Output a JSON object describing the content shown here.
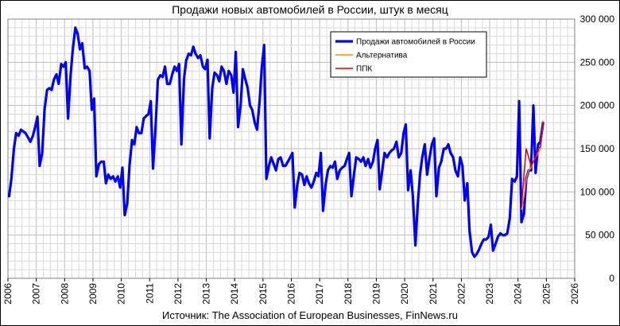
{
  "chart_data": {
    "type": "line",
    "title": "Продажи новых автомобилей в России, штук в месяц",
    "source": "Источник: The Association of European Businesses, FinNews.ru",
    "xlim": [
      2006,
      2026
    ],
    "ylim": [
      0,
      300000
    ],
    "grid": true,
    "legend_position": "top-right",
    "x_ticks": [
      "2006",
      "2007",
      "2008",
      "2009",
      "2010",
      "2011",
      "2012",
      "2013",
      "2014",
      "2015",
      "2016",
      "2017",
      "2018",
      "2019",
      "2020",
      "2021",
      "2022",
      "2023",
      "2024",
      "2025",
      "2026"
    ],
    "y_ticks": [
      "0",
      "50 000",
      "100 000",
      "150 000",
      "200 000",
      "250 000",
      "300 000"
    ],
    "series": [
      {
        "name": "Продажи автомобилей в России",
        "color": "#0000ff",
        "points": [
          [
            2006.04,
            95000
          ],
          [
            2006.12,
            115000
          ],
          [
            2006.21,
            150000
          ],
          [
            2006.29,
            168000
          ],
          [
            2006.38,
            165000
          ],
          [
            2006.46,
            172000
          ],
          [
            2006.54,
            170000
          ],
          [
            2006.62,
            168000
          ],
          [
            2006.71,
            163000
          ],
          [
            2006.79,
            158000
          ],
          [
            2006.88,
            165000
          ],
          [
            2006.96,
            175000
          ],
          [
            2007.04,
            187000
          ],
          [
            2007.12,
            130000
          ],
          [
            2007.21,
            145000
          ],
          [
            2007.29,
            195000
          ],
          [
            2007.38,
            218000
          ],
          [
            2007.46,
            220000
          ],
          [
            2007.54,
            218000
          ],
          [
            2007.62,
            230000
          ],
          [
            2007.71,
            236000
          ],
          [
            2007.79,
            225000
          ],
          [
            2007.88,
            248000
          ],
          [
            2007.96,
            245000
          ],
          [
            2008.04,
            250000
          ],
          [
            2008.12,
            185000
          ],
          [
            2008.21,
            235000
          ],
          [
            2008.29,
            265000
          ],
          [
            2008.38,
            290000
          ],
          [
            2008.46,
            283000
          ],
          [
            2008.54,
            265000
          ],
          [
            2008.62,
            272000
          ],
          [
            2008.71,
            243000
          ],
          [
            2008.79,
            245000
          ],
          [
            2008.88,
            240000
          ],
          [
            2008.96,
            195000
          ],
          [
            2009.04,
            208000
          ],
          [
            2009.12,
            118000
          ],
          [
            2009.21,
            132000
          ],
          [
            2009.29,
            135000
          ],
          [
            2009.38,
            135000
          ],
          [
            2009.46,
            110000
          ],
          [
            2009.54,
            120000
          ],
          [
            2009.62,
            115000
          ],
          [
            2009.71,
            118000
          ],
          [
            2009.79,
            112000
          ],
          [
            2009.88,
            118000
          ],
          [
            2009.96,
            105000
          ],
          [
            2010.04,
            128000
          ],
          [
            2010.12,
            73000
          ],
          [
            2010.21,
            87000
          ],
          [
            2010.29,
            130000
          ],
          [
            2010.38,
            160000
          ],
          [
            2010.46,
            155000
          ],
          [
            2010.54,
            175000
          ],
          [
            2010.62,
            168000
          ],
          [
            2010.71,
            168000
          ],
          [
            2010.79,
            185000
          ],
          [
            2010.88,
            188000
          ],
          [
            2010.96,
            190000
          ],
          [
            2011.04,
            205000
          ],
          [
            2011.12,
            127000
          ],
          [
            2011.21,
            175000
          ],
          [
            2011.29,
            230000
          ],
          [
            2011.38,
            235000
          ],
          [
            2011.46,
            233000
          ],
          [
            2011.54,
            245000
          ],
          [
            2011.62,
            225000
          ],
          [
            2011.71,
            225000
          ],
          [
            2011.79,
            235000
          ],
          [
            2011.88,
            245000
          ],
          [
            2011.96,
            240000
          ],
          [
            2012.04,
            248000
          ],
          [
            2012.12,
            155000
          ],
          [
            2012.21,
            230000
          ],
          [
            2012.29,
            252000
          ],
          [
            2012.38,
            260000
          ],
          [
            2012.46,
            258000
          ],
          [
            2012.54,
            268000
          ],
          [
            2012.62,
            260000
          ],
          [
            2012.71,
            255000
          ],
          [
            2012.79,
            258000
          ],
          [
            2012.88,
            245000
          ],
          [
            2012.96,
            242000
          ],
          [
            2013.04,
            253000
          ],
          [
            2013.12,
            162000
          ],
          [
            2013.21,
            220000
          ],
          [
            2013.29,
            238000
          ],
          [
            2013.38,
            235000
          ],
          [
            2013.46,
            228000
          ],
          [
            2013.54,
            245000
          ],
          [
            2013.62,
            240000
          ],
          [
            2013.71,
            225000
          ],
          [
            2013.79,
            240000
          ],
          [
            2013.88,
            235000
          ],
          [
            2013.96,
            215000
          ],
          [
            2014.04,
            262000
          ],
          [
            2014.12,
            175000
          ],
          [
            2014.21,
            200000
          ],
          [
            2014.29,
            242000
          ],
          [
            2014.38,
            230000
          ],
          [
            2014.46,
            220000
          ],
          [
            2014.54,
            200000
          ],
          [
            2014.62,
            195000
          ],
          [
            2014.71,
            180000
          ],
          [
            2014.79,
            172000
          ],
          [
            2014.88,
            205000
          ],
          [
            2014.96,
            245000
          ],
          [
            2015.04,
            270000
          ],
          [
            2015.12,
            115000
          ],
          [
            2015.21,
            130000
          ],
          [
            2015.29,
            140000
          ],
          [
            2015.38,
            132000
          ],
          [
            2015.46,
            125000
          ],
          [
            2015.54,
            138000
          ],
          [
            2015.62,
            140000
          ],
          [
            2015.71,
            130000
          ],
          [
            2015.79,
            130000
          ],
          [
            2015.88,
            135000
          ],
          [
            2015.96,
            140000
          ],
          [
            2016.04,
            145000
          ],
          [
            2016.12,
            82000
          ],
          [
            2016.21,
            108000
          ],
          [
            2016.29,
            122000
          ],
          [
            2016.38,
            120000
          ],
          [
            2016.46,
            108000
          ],
          [
            2016.54,
            118000
          ],
          [
            2016.62,
            110000
          ],
          [
            2016.71,
            105000
          ],
          [
            2016.79,
            112000
          ],
          [
            2016.88,
            122000
          ],
          [
            2016.96,
            118000
          ],
          [
            2017.04,
            145000
          ],
          [
            2017.12,
            78000
          ],
          [
            2017.21,
            108000
          ],
          [
            2017.29,
            125000
          ],
          [
            2017.38,
            130000
          ],
          [
            2017.46,
            128000
          ],
          [
            2017.54,
            135000
          ],
          [
            2017.62,
            115000
          ],
          [
            2017.71,
            125000
          ],
          [
            2017.79,
            128000
          ],
          [
            2017.88,
            130000
          ],
          [
            2017.96,
            138000
          ],
          [
            2018.04,
            145000
          ],
          [
            2018.12,
            95000
          ],
          [
            2018.21,
            120000
          ],
          [
            2018.29,
            140000
          ],
          [
            2018.38,
            138000
          ],
          [
            2018.46,
            135000
          ],
          [
            2018.54,
            140000
          ],
          [
            2018.62,
            130000
          ],
          [
            2018.71,
            138000
          ],
          [
            2018.79,
            128000
          ],
          [
            2018.88,
            135000
          ],
          [
            2018.96,
            150000
          ],
          [
            2019.04,
            160000
          ],
          [
            2019.12,
            103000
          ],
          [
            2019.21,
            125000
          ],
          [
            2019.29,
            145000
          ],
          [
            2019.38,
            140000
          ],
          [
            2019.46,
            145000
          ],
          [
            2019.54,
            148000
          ],
          [
            2019.62,
            150000
          ],
          [
            2019.71,
            158000
          ],
          [
            2019.79,
            140000
          ],
          [
            2019.88,
            145000
          ],
          [
            2019.96,
            168000
          ],
          [
            2020.04,
            178000
          ],
          [
            2020.12,
            102000
          ],
          [
            2020.21,
            125000
          ],
          [
            2020.29,
            95000
          ],
          [
            2020.38,
            38000
          ],
          [
            2020.46,
            85000
          ],
          [
            2020.54,
            120000
          ],
          [
            2020.62,
            140000
          ],
          [
            2020.71,
            155000
          ],
          [
            2020.79,
            120000
          ],
          [
            2020.88,
            140000
          ],
          [
            2020.96,
            155000
          ],
          [
            2021.04,
            162000
          ],
          [
            2021.12,
            95000
          ],
          [
            2021.21,
            128000
          ],
          [
            2021.29,
            135000
          ],
          [
            2021.38,
            150000
          ],
          [
            2021.46,
            150000
          ],
          [
            2021.54,
            155000
          ],
          [
            2021.62,
            145000
          ],
          [
            2021.71,
            140000
          ],
          [
            2021.79,
            125000
          ],
          [
            2021.88,
            118000
          ],
          [
            2021.96,
            140000
          ],
          [
            2022.04,
            130000
          ],
          [
            2022.12,
            90000
          ],
          [
            2022.21,
            110000
          ],
          [
            2022.29,
            55000
          ],
          [
            2022.38,
            30000
          ],
          [
            2022.46,
            25000
          ],
          [
            2022.54,
            28000
          ],
          [
            2022.62,
            33000
          ],
          [
            2022.71,
            40000
          ],
          [
            2022.79,
            45000
          ],
          [
            2022.88,
            45000
          ],
          [
            2022.96,
            48000
          ],
          [
            2023.04,
            62000
          ],
          [
            2023.12,
            32000
          ],
          [
            2023.21,
            40000
          ],
          [
            2023.29,
            48000
          ],
          [
            2023.38,
            52000
          ],
          [
            2023.46,
            50000
          ],
          [
            2023.54,
            50000
          ],
          [
            2023.62,
            52000
          ],
          [
            2023.71,
            70000
          ],
          [
            2023.79,
            115000
          ],
          [
            2023.88,
            112000
          ],
          [
            2023.96,
            118000
          ],
          [
            2024.04,
            205000
          ],
          [
            2024.12,
            65000
          ],
          [
            2024.21,
            75000
          ],
          [
            2024.29,
            115000
          ],
          [
            2024.38,
            125000
          ],
          [
            2024.46,
            125000
          ],
          [
            2024.54,
            200000
          ],
          [
            2024.62,
            122000
          ],
          [
            2024.71,
            155000
          ],
          [
            2024.79,
            158000
          ],
          [
            2024.88,
            180000
          ]
        ]
      },
      {
        "name": "Альтернатива",
        "color": "#ff8c00",
        "points": [
          [
            2024.12,
            80000
          ],
          [
            2024.21,
            95000
          ],
          [
            2024.29,
            115000
          ],
          [
            2024.38,
            125000
          ],
          [
            2024.46,
            128000
          ],
          [
            2024.54,
            135000
          ],
          [
            2024.62,
            140000
          ],
          [
            2024.71,
            145000
          ],
          [
            2024.79,
            150000
          ],
          [
            2024.88,
            182000
          ]
        ]
      },
      {
        "name": "ППК",
        "color": "#e00000",
        "points": [
          [
            2024.12,
            82000
          ],
          [
            2024.21,
            120000
          ],
          [
            2024.29,
            150000
          ],
          [
            2024.38,
            140000
          ],
          [
            2024.46,
            130000
          ],
          [
            2024.54,
            135000
          ],
          [
            2024.62,
            140000
          ],
          [
            2024.71,
            150000
          ],
          [
            2024.79,
            152000
          ],
          [
            2024.88,
            180000
          ]
        ]
      }
    ]
  }
}
